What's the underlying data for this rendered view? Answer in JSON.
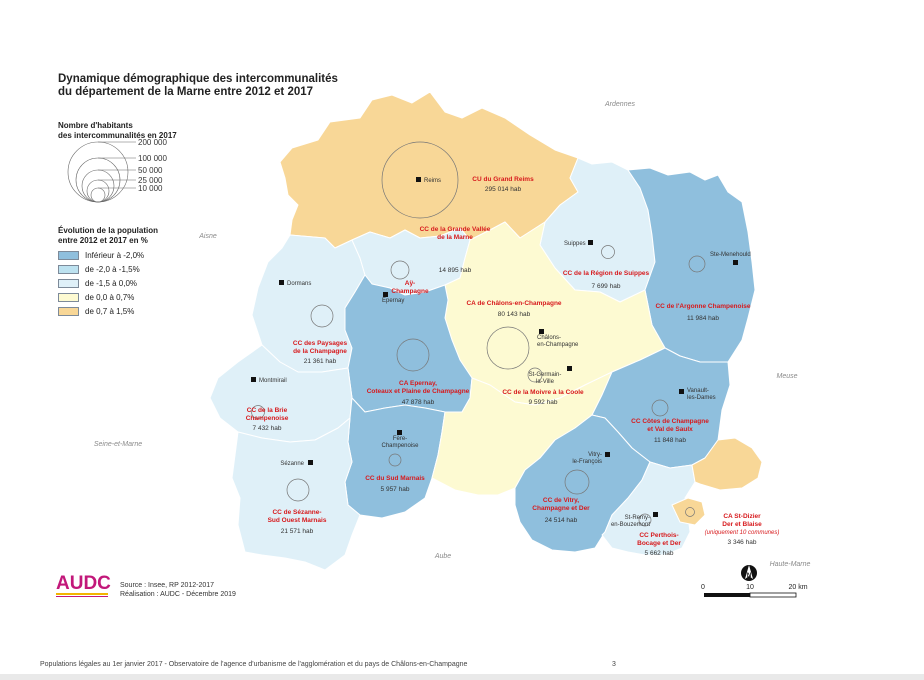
{
  "title": {
    "line1": "Dynamique démographique des intercommunalités",
    "line2": "du département de la Marne entre 2012 et 2017"
  },
  "legend": {
    "size_title_line1": "Nombre d'habitants",
    "size_title_line2": "des intercommunalités en 2017",
    "size_values": [
      "200 000",
      "100 000",
      "50 000",
      "25 000",
      "10 000"
    ],
    "evolution_title_line1": "Évolution de la population",
    "evolution_title_line2": "entre 2012 et 2017 en %",
    "classes": [
      {
        "label": "Inférieur à -2,0%",
        "color": "#8fbfdd"
      },
      {
        "label": "de -2,0 à -1,5%",
        "color": "#bde2f0"
      },
      {
        "label": "de -1,5 à 0,0%",
        "color": "#dff0f8"
      },
      {
        "label": "de 0,0 à 0,7%",
        "color": "#fdfad2"
      },
      {
        "label": "de 0,7 à 1,5%",
        "color": "#f8d797"
      }
    ]
  },
  "neighbors": {
    "ardennes": "Ardennes",
    "aisne": "Aisne",
    "seine_et_marne": "Seine-et-Marne",
    "aube": "Aube",
    "meuse": "Meuse",
    "haute_marne": "Haute-Marne"
  },
  "intercommunalites": [
    {
      "name_lines": [
        "CU du Grand Reims"
      ],
      "pop": "295 014 hab",
      "color": "#f8d797"
    },
    {
      "name_lines": [
        "CC de la Grande Vallée",
        "de la Marne"
      ],
      "pop": "14 895 hab",
      "color": "#dff0f8"
    },
    {
      "name_lines": [
        "Aÿ-",
        "Champagne"
      ],
      "pop": "",
      "color": ""
    },
    {
      "name_lines": [
        "CC de la Région de Suippes"
      ],
      "pop": "7 699 hab",
      "color": "#dff0f8"
    },
    {
      "name_lines": [
        "CC de l'Argonne Champenoise"
      ],
      "pop": "11 984 hab",
      "color": "#8fbfdd"
    },
    {
      "name_lines": [
        "CA de Châlons-en-Champagne"
      ],
      "pop": "80 143 hab",
      "color": "#fdfad2"
    },
    {
      "name_lines": [
        "CC des Paysages",
        "de la Champagne"
      ],
      "pop": "21 361 hab",
      "color": "#dff0f8"
    },
    {
      "name_lines": [
        "CA Epernay,",
        "Coteaux et Plaine de Champagne"
      ],
      "pop": "47 878 hab",
      "color": "#8fbfdd"
    },
    {
      "name_lines": [
        "CC de la Moivre à la Coole"
      ],
      "pop": "9 592 hab",
      "color": "#fdfad2"
    },
    {
      "name_lines": [
        "CC de la Brie",
        "Champenoise"
      ],
      "pop": "7 432 hab",
      "color": "#dff0f8"
    },
    {
      "name_lines": [
        "CC Côtes de Champagne",
        "et Val de Saulx"
      ],
      "pop": "11 848 hab",
      "color": "#8fbfdd"
    },
    {
      "name_lines": [
        "CC du Sud Marnais"
      ],
      "pop": "5 957 hab",
      "color": "#8fbfdd"
    },
    {
      "name_lines": [
        "CC de Sézanne-",
        "Sud Ouest Marnais"
      ],
      "pop": "21 571 hab",
      "color": "#dff0f8"
    },
    {
      "name_lines": [
        "CC de Vitry,",
        "Champagne et Der"
      ],
      "pop": "24 514 hab",
      "color": "#8fbfdd"
    },
    {
      "name_lines": [
        "CC Perthois-",
        "Bocage et Der"
      ],
      "pop": "5 662 hab",
      "color": "#dff0f8"
    },
    {
      "name_lines": [
        "CA St-Dizier",
        "Der et Blaise"
      ],
      "note": "(uniquement 10 communes)",
      "pop": "3 346 hab",
      "color": "#f8d797"
    }
  ],
  "towns": [
    {
      "name_lines": [
        "Reims"
      ]
    },
    {
      "name_lines": [
        "Suippes"
      ]
    },
    {
      "name_lines": [
        "Ste-Menehould"
      ]
    },
    {
      "name_lines": [
        "Dormans"
      ]
    },
    {
      "name_lines": [
        "Epernay"
      ]
    },
    {
      "name_lines": [
        "Châlons-",
        "en-Champagne"
      ]
    },
    {
      "name_lines": [
        "St-Germain-",
        "la-Ville"
      ]
    },
    {
      "name_lines": [
        "Montmirail"
      ]
    },
    {
      "name_lines": [
        "Vanault-",
        "les-Dames"
      ]
    },
    {
      "name_lines": [
        "Fère-",
        "Champenoise"
      ]
    },
    {
      "name_lines": [
        "Vitry-",
        "le-François"
      ]
    },
    {
      "name_lines": [
        "Sézanne"
      ]
    },
    {
      "name_lines": [
        "St-Remy-",
        "en-Bouzemont"
      ]
    }
  ],
  "scale": {
    "labels": [
      "0",
      "10",
      "20 km"
    ]
  },
  "north_symbol": "N",
  "source": {
    "line1": "Source : Insee, RP 2012-2017",
    "line2": "Réalisation : AUDC - Décembre 2019"
  },
  "logo_text": "AUDC",
  "footer": {
    "text": "Populations légales au 1er janvier 2017 - Observatoire de l'agence d'urbanisme de l'agglomération et du pays de Châlons-en-Champagne",
    "page": "3"
  },
  "label_color": "#d7191c"
}
